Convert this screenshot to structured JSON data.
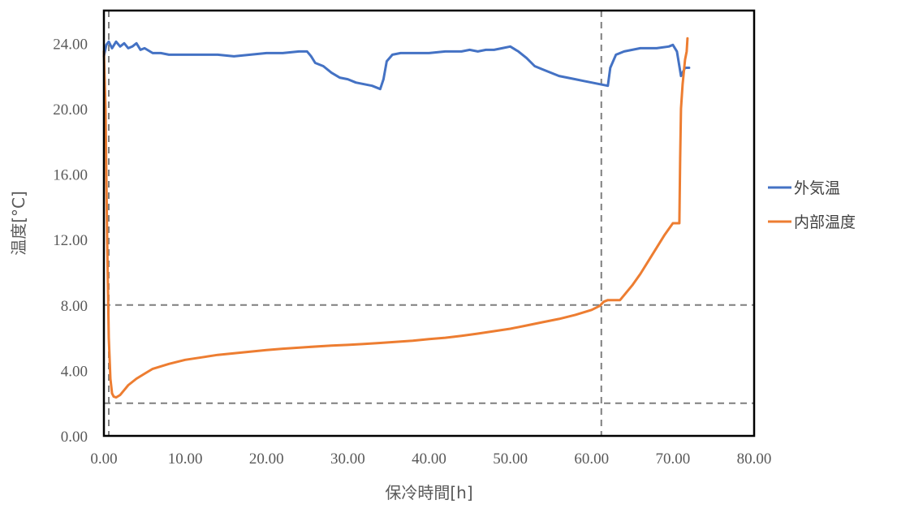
{
  "chart_data": {
    "type": "line",
    "title": "",
    "xlabel": "保冷時間[h]",
    "ylabel": "温度[°C]",
    "xlim": [
      0,
      80
    ],
    "ylim": [
      0,
      24
    ],
    "x_ticks": [
      "0.00",
      "10.00",
      "20.00",
      "30.00",
      "40.00",
      "50.00",
      "60.00",
      "70.00",
      "80.00"
    ],
    "y_ticks": [
      "0.00",
      "4.00",
      "8.00",
      "12.00",
      "16.00",
      "20.00",
      "24.00"
    ],
    "grid": false,
    "legend_position": "right",
    "reference_lines": {
      "horizontal": [
        2,
        8
      ],
      "vertical": [
        0.6,
        61.2
      ],
      "style": "dashed",
      "color": "#7f7f7f"
    },
    "series": [
      {
        "name": "外気温",
        "color": "#4472c4",
        "x": [
          0.0,
          0.3,
          0.6,
          1.0,
          1.5,
          2.0,
          2.5,
          3.0,
          3.5,
          4.0,
          4.5,
          5.0,
          6.0,
          7.0,
          8.0,
          10.0,
          12.0,
          14.0,
          16.0,
          18.0,
          20.0,
          22.0,
          24.0,
          25.0,
          25.5,
          26.0,
          27.0,
          28.0,
          29.0,
          30.0,
          31.0,
          32.0,
          33.0,
          34.0,
          34.4,
          34.8,
          35.5,
          36.5,
          38.0,
          40.0,
          42.0,
          44.0,
          45.0,
          46.0,
          47.0,
          48.0,
          49.0,
          50.0,
          51.0,
          52.0,
          53.0,
          54.0,
          55.0,
          56.0,
          57.0,
          58.0,
          59.0,
          60.0,
          61.0,
          62.0,
          62.3,
          63.0,
          64.0,
          66.0,
          68.0,
          69.5,
          70.0,
          70.5,
          71.0,
          71.5,
          72.0
        ],
        "values": [
          23.2,
          23.9,
          24.1,
          23.7,
          24.1,
          23.8,
          24.0,
          23.7,
          23.8,
          24.0,
          23.6,
          23.7,
          23.4,
          23.4,
          23.3,
          23.3,
          23.3,
          23.3,
          23.2,
          23.3,
          23.4,
          23.4,
          23.5,
          23.5,
          23.2,
          22.8,
          22.6,
          22.2,
          21.9,
          21.8,
          21.6,
          21.5,
          21.4,
          21.2,
          21.8,
          22.9,
          23.3,
          23.4,
          23.4,
          23.4,
          23.5,
          23.5,
          23.6,
          23.5,
          23.6,
          23.6,
          23.7,
          23.8,
          23.5,
          23.1,
          22.6,
          22.4,
          22.2,
          22.0,
          21.9,
          21.8,
          21.7,
          21.6,
          21.5,
          21.4,
          22.5,
          23.3,
          23.5,
          23.7,
          23.7,
          23.8,
          23.9,
          23.5,
          22.0,
          22.5,
          22.5
        ]
      },
      {
        "name": "内部温度",
        "color": "#ed7d31",
        "x": [
          0.0,
          0.2,
          0.4,
          0.6,
          0.8,
          1.0,
          1.2,
          1.5,
          2.0,
          2.5,
          3.0,
          4.0,
          5.0,
          6.0,
          8.0,
          10.0,
          12.0,
          14.0,
          16.0,
          18.0,
          20.0,
          22.0,
          25.0,
          28.0,
          30.0,
          32.0,
          34.0,
          36.0,
          38.0,
          40.0,
          42.0,
          44.0,
          46.0,
          48.0,
          50.0,
          52.0,
          54.0,
          56.0,
          58.0,
          60.0,
          61.0,
          61.5,
          62.0,
          63.0,
          63.5,
          64.0,
          65.0,
          66.0,
          67.0,
          68.0,
          69.0,
          70.0,
          70.4,
          70.8,
          70.9,
          71.0,
          71.2,
          71.5,
          71.7,
          71.8
        ],
        "values": [
          23.5,
          20.0,
          12.0,
          6.0,
          3.5,
          2.6,
          2.4,
          2.35,
          2.5,
          2.8,
          3.1,
          3.5,
          3.8,
          4.1,
          4.4,
          4.65,
          4.8,
          4.95,
          5.05,
          5.15,
          5.25,
          5.33,
          5.43,
          5.52,
          5.56,
          5.62,
          5.68,
          5.75,
          5.82,
          5.92,
          6.0,
          6.12,
          6.25,
          6.4,
          6.55,
          6.75,
          6.95,
          7.15,
          7.4,
          7.7,
          7.95,
          8.2,
          8.3,
          8.3,
          8.3,
          8.6,
          9.2,
          9.9,
          10.7,
          11.5,
          12.3,
          13.0,
          13.0,
          13.0,
          17.0,
          20.0,
          21.5,
          23.0,
          23.5,
          24.3
        ]
      }
    ]
  }
}
